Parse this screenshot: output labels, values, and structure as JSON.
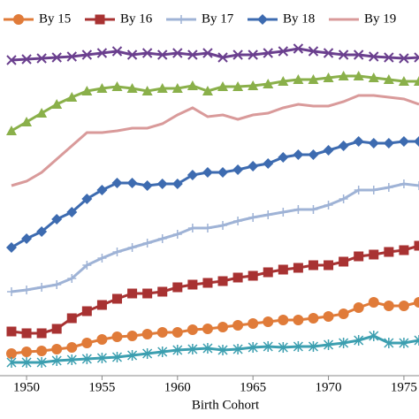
{
  "chart_data": {
    "type": "line",
    "xlabel": "Birth Cohort",
    "x": [
      1949,
      1950,
      1951,
      1952,
      1953,
      1954,
      1955,
      1956,
      1957,
      1958,
      1959,
      1960,
      1961,
      1962,
      1963,
      1964,
      1965,
      1966,
      1967,
      1968,
      1969,
      1970,
      1971,
      1972,
      1973,
      1974,
      1975,
      1976
    ],
    "xlim": [
      1948.24,
      1976.0
    ],
    "xticks": [
      1950,
      1955,
      1960,
      1965,
      1970,
      1975
    ],
    "ylim": [
      3.75,
      110
    ],
    "series": [
      {
        "name": "By 15",
        "color": "#e07b39",
        "marker": "circle",
        "values": [
          10,
          10.5,
          10.75,
          11.25,
          11.75,
          13,
          14,
          14.75,
          15,
          15.5,
          16,
          16,
          16.75,
          17,
          17.5,
          18,
          18.5,
          19,
          19.5,
          19.5,
          20,
          20.5,
          21.25,
          23,
          24.5,
          23.5,
          23.5,
          24.5
        ]
      },
      {
        "name": "By 16",
        "color": "#a83232",
        "marker": "square",
        "values": [
          16.25,
          15.75,
          15.75,
          17,
          20,
          22,
          23.75,
          25.5,
          27,
          27,
          27.5,
          28.75,
          29.5,
          30,
          30.5,
          31.5,
          32,
          33,
          33.75,
          34.25,
          35,
          35,
          36,
          37.5,
          38,
          38.75,
          39.25,
          40.5
        ]
      },
      {
        "name": "By 17",
        "color": "#9fb3d6",
        "marker": "plus",
        "values": [
          27.5,
          28,
          28.75,
          29.5,
          31.25,
          35,
          37,
          38.75,
          40,
          41.25,
          42.5,
          43.75,
          45.5,
          45.5,
          46.25,
          47.5,
          48.5,
          49.25,
          50,
          50.75,
          50.75,
          52,
          53.75,
          56.25,
          56.25,
          57,
          58,
          57.5
        ]
      },
      {
        "name": "By 18",
        "color": "#3d6bb0",
        "marker": "diamond",
        "values": [
          40,
          42.5,
          44.5,
          48,
          50,
          53.75,
          56.25,
          58.25,
          58.25,
          57.5,
          58,
          58,
          60.5,
          61.25,
          61.25,
          62,
          63,
          63.75,
          65.5,
          66.25,
          66.25,
          67.5,
          68.75,
          70,
          69.5,
          69.5,
          70,
          70
        ]
      },
      {
        "name": "By 19",
        "color": "#d99a9a",
        "marker": "none",
        "values": [
          57.5,
          58.75,
          61.25,
          65,
          68.75,
          72.5,
          72.5,
          73,
          73.75,
          73.75,
          75,
          77.5,
          79.5,
          77,
          77.5,
          76.25,
          77.5,
          78,
          79.5,
          80.5,
          80,
          80,
          81.25,
          83,
          83,
          82.5,
          82,
          80.5
        ]
      },
      {
        "color": "#8ab04a",
        "marker": "triangle",
        "values": [
          73,
          75.5,
          78,
          80.5,
          82.5,
          84.25,
          85,
          85.5,
          85,
          84.25,
          85,
          85,
          85.75,
          84.25,
          85.5,
          85.5,
          85.75,
          86.25,
          87,
          87.5,
          87.5,
          88,
          88.5,
          88.5,
          88,
          87.5,
          87,
          87
        ]
      },
      {
        "color": "#6a3f8e",
        "marker": "x",
        "values": [
          93,
          93.25,
          93.5,
          93.75,
          94,
          94.5,
          95,
          95.5,
          94.5,
          95,
          94.5,
          95,
          94.5,
          95,
          93.75,
          94.5,
          94.5,
          95,
          95.5,
          96.25,
          95.5,
          95,
          94.5,
          94.5,
          94,
          93.75,
          93.5,
          93.75
        ]
      },
      {
        "color": "#3c9fb0",
        "marker": "asterisk",
        "values": [
          7.5,
          7.5,
          7.5,
          8,
          8.25,
          8.5,
          8.75,
          9,
          9.5,
          10,
          10.5,
          11,
          11.25,
          11.5,
          11,
          11.25,
          11.75,
          12,
          11.75,
          12,
          12,
          12.5,
          13,
          13.75,
          15,
          13,
          13,
          13.75
        ]
      }
    ]
  }
}
